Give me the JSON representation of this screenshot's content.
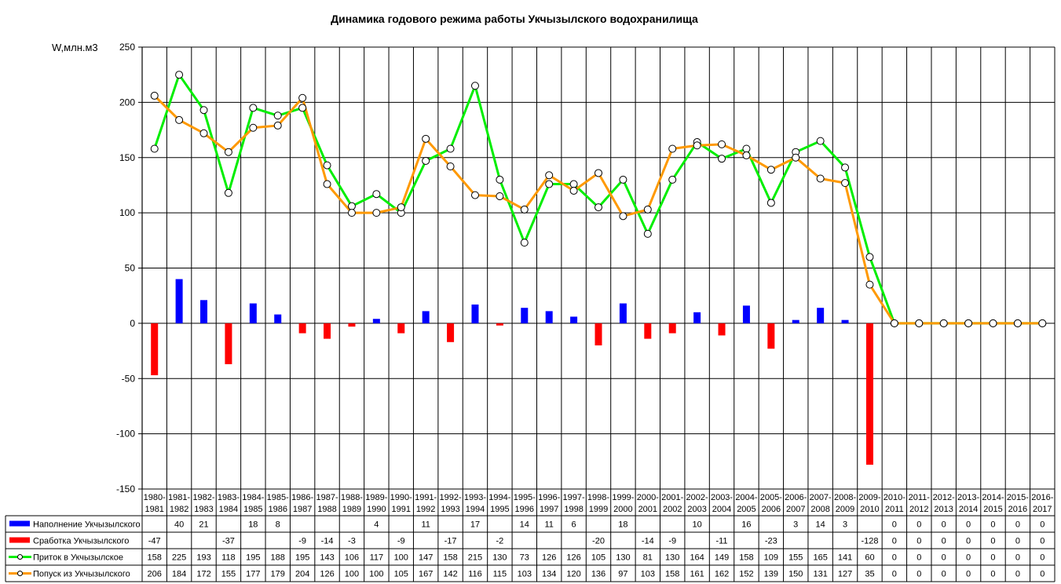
{
  "chart_data": {
    "type": "bar",
    "title": "Динамика годового режима работы Укчызылского водохранилища",
    "ylabel": "W,млн.м3",
    "ylim": [
      -150,
      250
    ],
    "yticks": [
      250,
      200,
      150,
      100,
      50,
      0,
      -50,
      -100,
      -150
    ],
    "grid": true,
    "categories": [
      [
        "1980-",
        "1981"
      ],
      [
        "1981-",
        "1982"
      ],
      [
        "1982-",
        "1983"
      ],
      [
        "1983-",
        "1984"
      ],
      [
        "1984-",
        "1985"
      ],
      [
        "1985-",
        "1986"
      ],
      [
        "1986-",
        "1987"
      ],
      [
        "1987-",
        "1988"
      ],
      [
        "1988-",
        "1989"
      ],
      [
        "1989-",
        "1990"
      ],
      [
        "1990-",
        "1991"
      ],
      [
        "1991-",
        "1992"
      ],
      [
        "1992-",
        "1993"
      ],
      [
        "1993-",
        "1994"
      ],
      [
        "1994-",
        "1995"
      ],
      [
        "1995-",
        "1996"
      ],
      [
        "1996-",
        "1997"
      ],
      [
        "1997-",
        "1998"
      ],
      [
        "1998-",
        "1999"
      ],
      [
        "1999-",
        "2000"
      ],
      [
        "2000-",
        "2001"
      ],
      [
        "2001-",
        "2002"
      ],
      [
        "2002-",
        "2003"
      ],
      [
        "2003-",
        "2004"
      ],
      [
        "2004-",
        "2005"
      ],
      [
        "2005-",
        "2006"
      ],
      [
        "2006-",
        "2007"
      ],
      [
        "2007-",
        "2008"
      ],
      [
        "2008-",
        "2009"
      ],
      [
        "2009-",
        "2010"
      ],
      [
        "2010-",
        "2011"
      ],
      [
        "2011-",
        "2012"
      ],
      [
        "2012-",
        "2013"
      ],
      [
        "2013-",
        "2014"
      ],
      [
        "2014-",
        "2015"
      ],
      [
        "2015-",
        "2016"
      ],
      [
        "2016-",
        "2017"
      ]
    ],
    "series": [
      {
        "name": "Наполнение Укчызылского",
        "kind": "bar",
        "color": "#0000ff",
        "values": [
          null,
          40,
          21,
          null,
          18,
          8,
          null,
          null,
          null,
          4,
          null,
          11,
          null,
          17,
          null,
          14,
          11,
          6,
          null,
          18,
          null,
          null,
          10,
          null,
          16,
          null,
          3,
          14,
          3,
          null,
          0,
          0,
          0,
          0,
          0,
          0,
          0
        ]
      },
      {
        "name": "Сработка Укчызылского",
        "kind": "bar",
        "color": "#ff0000",
        "values": [
          -47,
          null,
          null,
          -37,
          null,
          null,
          -9,
          -14,
          -3,
          null,
          -9,
          null,
          -17,
          null,
          -2,
          null,
          null,
          null,
          -20,
          null,
          -14,
          -9,
          null,
          -11,
          null,
          -23,
          null,
          null,
          null,
          -128,
          0,
          0,
          0,
          0,
          0,
          0,
          0
        ]
      },
      {
        "name": "Приток в Укчызылское",
        "kind": "line",
        "color": "#00ee00",
        "values": [
          158,
          225,
          193,
          118,
          195,
          188,
          195,
          143,
          106,
          117,
          100,
          147,
          158,
          215,
          130,
          73,
          126,
          126,
          105,
          130,
          81,
          130,
          164,
          149,
          158,
          109,
          155,
          165,
          141,
          60,
          0,
          0,
          0,
          0,
          0,
          0,
          0
        ]
      },
      {
        "name": "Попуск из Укчызылского",
        "kind": "line",
        "color": "#ff9900",
        "values": [
          206,
          184,
          172,
          155,
          177,
          179,
          204,
          126,
          100,
          100,
          105,
          167,
          142,
          116,
          115,
          103,
          134,
          120,
          136,
          97,
          103,
          158,
          161,
          162,
          152,
          139,
          150,
          131,
          127,
          35,
          0,
          0,
          0,
          0,
          0,
          0,
          0
        ]
      }
    ]
  }
}
